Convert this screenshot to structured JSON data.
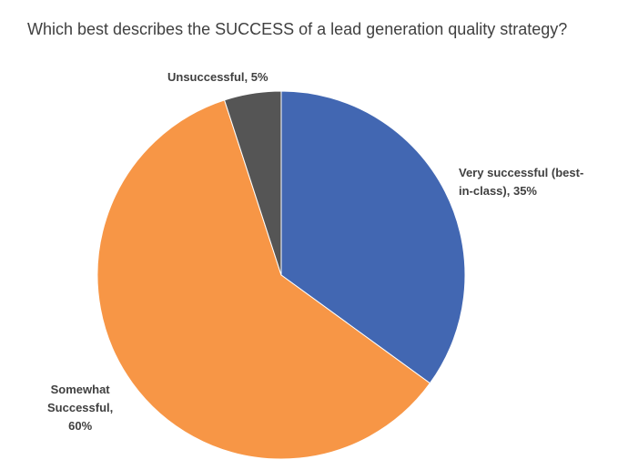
{
  "chart_data": {
    "type": "pie",
    "title": "Which best describes the SUCCESS of a lead generation quality strategy?",
    "slices": [
      {
        "name": "Very successful (best-in-class)",
        "value": 35,
        "color": "#4267b2",
        "label_lines": [
          "Very successful (best-",
          "in-class), 35%"
        ]
      },
      {
        "name": "Somewhat Successful",
        "value": 60,
        "color": "#f79646",
        "label_lines": [
          "Somewhat",
          "Successful,",
          "60%"
        ]
      },
      {
        "name": "Unsuccessful",
        "value": 5,
        "color": "#555555",
        "label_lines": [
          "Unsuccessful, 5%"
        ]
      }
    ],
    "start_angle_deg": 0,
    "direction": "clockwise",
    "legend": "none",
    "grid": false
  }
}
